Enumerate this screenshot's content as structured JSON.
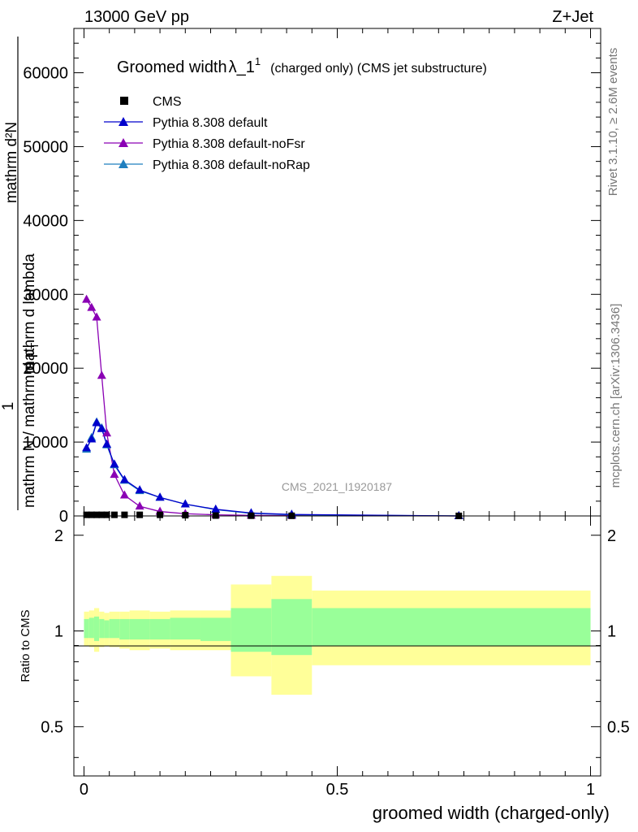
{
  "header": {
    "energy_label": "13000 GeV pp",
    "process_label": "Z+Jet"
  },
  "side_labels": {
    "rivet": "Rivet 3.1.10, ≥ 2.6M events",
    "mcplots": "mcplots.cern.ch [arXiv:1306.3436]"
  },
  "colors": {
    "cms": "#000000",
    "default": "#0000cc",
    "noFsr": "#8a00b4",
    "noRap": "#1f7fbf",
    "band_outer": "#ffff99",
    "band_inner": "#99ff99"
  },
  "chart_data": [
    {
      "type": "line",
      "title": "Groomed width",
      "title_symbol": "λ_1",
      "title_superscript": "1",
      "title_suffix": "(charged only) (CMS jet substructure)",
      "ylabel_numerator": "1",
      "ylabel_denominator": "mathrm d²N",
      "ylabel_main": "mathrm N / mathrm d p",
      "ylabel_main_sub": "T",
      "ylabel_tail": "mathrm d lambda",
      "ylabel_lower_left": "mathrm d²N",
      "ylabel_lower_right": "mathrm d mathrm",
      "xlim": [
        -0.02,
        1.02
      ],
      "ylim": [
        0,
        66000
      ],
      "yticks": [
        0,
        10000,
        20000,
        30000,
        40000,
        50000,
        60000
      ],
      "ytick_labels": [
        "0",
        "10000",
        "20000",
        "30000",
        "40000",
        "50000",
        "60000"
      ],
      "legend_position": "top-left",
      "watermark": "CMS_2021_I1920187",
      "series": [
        {
          "name": "CMS",
          "marker": "square",
          "x": [
            0.005,
            0.015,
            0.025,
            0.035,
            0.045,
            0.06,
            0.08,
            0.11,
            0.15,
            0.2,
            0.26,
            0.33,
            0.41,
            0.74
          ],
          "y": [
            150,
            150,
            150,
            150,
            150,
            150,
            150,
            150,
            150,
            100,
            50,
            30,
            20,
            10
          ]
        },
        {
          "name": "Pythia 8.308 default",
          "marker": "triangle",
          "x": [
            0.005,
            0.015,
            0.025,
            0.035,
            0.045,
            0.06,
            0.08,
            0.11,
            0.15,
            0.2,
            0.26,
            0.33,
            0.41,
            0.74
          ],
          "y": [
            9200,
            10400,
            12600,
            11800,
            9700,
            7000,
            4900,
            3500,
            2500,
            1600,
            900,
            400,
            200,
            0
          ]
        },
        {
          "name": "Pythia 8.308 default-noFsr",
          "marker": "triangle",
          "x": [
            0.005,
            0.015,
            0.025,
            0.035,
            0.045,
            0.06,
            0.08,
            0.11,
            0.15,
            0.2,
            0.26,
            0.33,
            0.41,
            0.74
          ],
          "y": [
            29300,
            28200,
            26900,
            19000,
            11200,
            5600,
            2800,
            1300,
            600,
            300,
            150,
            80,
            40,
            0
          ]
        },
        {
          "name": "Pythia 8.308 default-noRap",
          "marker": "triangle",
          "x": [
            0.005,
            0.015,
            0.025,
            0.035,
            0.045,
            0.06,
            0.08,
            0.11,
            0.15,
            0.2,
            0.26,
            0.33,
            0.41,
            0.74
          ],
          "y": [
            9000,
            10600,
            12700,
            11900,
            9600,
            6900,
            4800,
            3400,
            2500,
            1600,
            850,
            350,
            150,
            0
          ]
        }
      ]
    },
    {
      "type": "area",
      "ylabel": "Ratio to CMS",
      "xlabel": "groomed width (charged-only)",
      "xlim": [
        -0.02,
        1.02
      ],
      "ylim": [
        0.35,
        2.3
      ],
      "yticks": [
        0.5,
        1,
        2
      ],
      "ytick_labels": [
        "0.5",
        "1",
        "2"
      ],
      "xticks": [
        0,
        0.5,
        1
      ],
      "xtick_labels": [
        "0",
        "0.5",
        "1"
      ],
      "bins": [
        {
          "lo": 0.0,
          "hi": 0.01,
          "outer_lo": 0.9,
          "outer_hi": 1.15,
          "inner_lo": 0.95,
          "inner_hi": 1.09
        },
        {
          "lo": 0.01,
          "hi": 0.02,
          "outer_lo": 0.89,
          "outer_hi": 1.16,
          "inner_lo": 0.95,
          "inner_hi": 1.1
        },
        {
          "lo": 0.02,
          "hi": 0.03,
          "outer_lo": 0.86,
          "outer_hi": 1.18,
          "inner_lo": 0.93,
          "inner_hi": 1.11
        },
        {
          "lo": 0.03,
          "hi": 0.04,
          "outer_lo": 0.89,
          "outer_hi": 1.15,
          "inner_lo": 0.95,
          "inner_hi": 1.09
        },
        {
          "lo": 0.04,
          "hi": 0.05,
          "outer_lo": 0.9,
          "outer_hi": 1.14,
          "inner_lo": 0.95,
          "inner_hi": 1.08
        },
        {
          "lo": 0.05,
          "hi": 0.07,
          "outer_lo": 0.89,
          "outer_hi": 1.15,
          "inner_lo": 0.95,
          "inner_hi": 1.09
        },
        {
          "lo": 0.07,
          "hi": 0.09,
          "outer_lo": 0.88,
          "outer_hi": 1.15,
          "inner_lo": 0.94,
          "inner_hi": 1.09
        },
        {
          "lo": 0.09,
          "hi": 0.13,
          "outer_lo": 0.87,
          "outer_hi": 1.16,
          "inner_lo": 0.94,
          "inner_hi": 1.09
        },
        {
          "lo": 0.13,
          "hi": 0.17,
          "outer_lo": 0.88,
          "outer_hi": 1.15,
          "inner_lo": 0.94,
          "inner_hi": 1.09
        },
        {
          "lo": 0.17,
          "hi": 0.23,
          "outer_lo": 0.87,
          "outer_hi": 1.16,
          "inner_lo": 0.94,
          "inner_hi": 1.1
        },
        {
          "lo": 0.23,
          "hi": 0.29,
          "outer_lo": 0.87,
          "outer_hi": 1.16,
          "inner_lo": 0.93,
          "inner_hi": 1.1
        },
        {
          "lo": 0.29,
          "hi": 0.37,
          "outer_lo": 0.72,
          "outer_hi": 1.4,
          "inner_lo": 0.86,
          "inner_hi": 1.18
        },
        {
          "lo": 0.37,
          "hi": 0.45,
          "outer_lo": 0.63,
          "outer_hi": 1.49,
          "inner_lo": 0.84,
          "inner_hi": 1.26
        },
        {
          "lo": 0.45,
          "hi": 1.0,
          "outer_lo": 0.78,
          "outer_hi": 1.34,
          "inner_lo": 0.9,
          "inner_hi": 1.18
        }
      ]
    }
  ]
}
